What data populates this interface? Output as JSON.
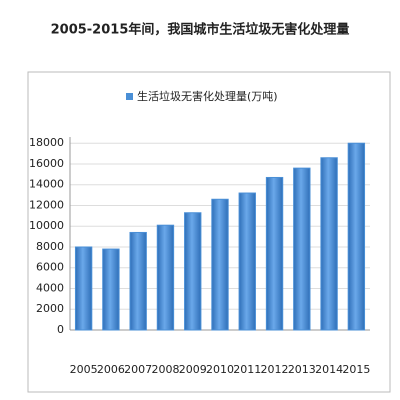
{
  "chart_data": {
    "type": "bar",
    "title": "2005-2015年间，我国城市生活垃圾无害化处理量",
    "categories": [
      "2005",
      "2006",
      "2007",
      "2008",
      "2009",
      "2010",
      "2011",
      "2012",
      "2013",
      "2014",
      "2015"
    ],
    "series": [
      {
        "name": "生活垃圾无害化处理量(万吨)",
        "color": "#4a8fd6",
        "values": [
          8000,
          7800,
          9400,
          10100,
          11300,
          12600,
          13200,
          14700,
          15600,
          16600,
          18000
        ]
      }
    ],
    "ylim": [
      0,
      18600
    ],
    "yticks": [
      0,
      2000,
      4000,
      6000,
      8000,
      10000,
      12000,
      14000,
      16000,
      18000
    ],
    "grid": true,
    "legend": "top"
  }
}
